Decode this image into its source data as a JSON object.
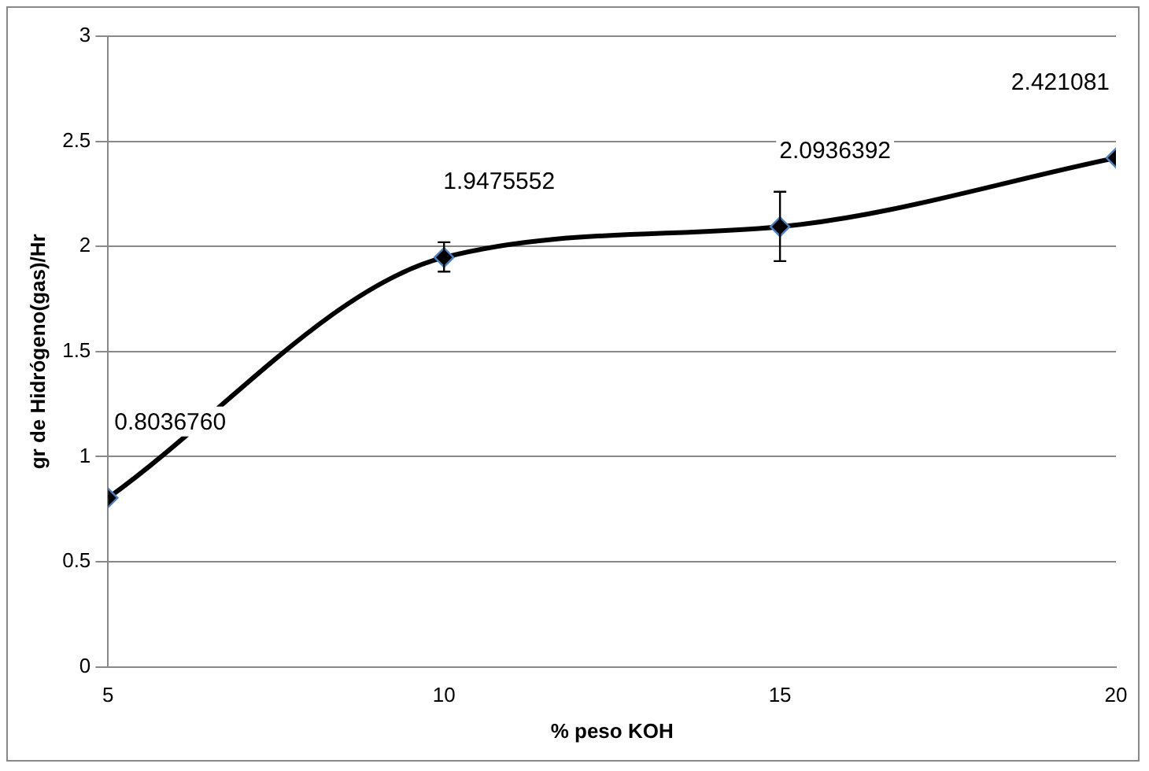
{
  "chart_data": {
    "type": "line",
    "xlabel": "% peso KOH",
    "ylabel": "gr de Hidrógeno(gas)/Hr",
    "x": [
      5,
      10,
      15,
      20
    ],
    "series": [
      {
        "color": "#000000",
        "values": [
          0.803676,
          1.9475552,
          2.0936392,
          2.421081
        ],
        "value_labels": [
          "0.8036760",
          "1.9475552",
          "2.0936392",
          "2.421081"
        ],
        "errors": [
          null,
          [
            1.88,
            2.02
          ],
          [
            1.93,
            2.26
          ],
          null
        ]
      }
    ],
    "xlim": [
      5,
      20
    ],
    "xticks": [
      5,
      10,
      15,
      20
    ],
    "ylim": [
      0,
      3
    ],
    "yticks": [
      0,
      0.5,
      1,
      1.5,
      2,
      2.5,
      3
    ],
    "grid": "y",
    "marker": "diamond",
    "line_style": "solid",
    "legend": false
  }
}
